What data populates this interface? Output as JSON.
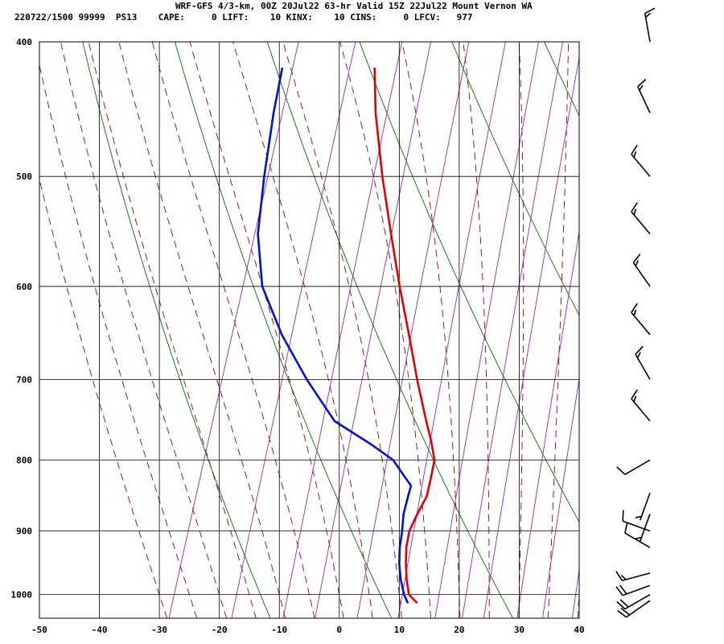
{
  "header": {
    "line1": "WRF-GFS 4/3-km, 00Z 20Jul22 63-hr Valid 15Z 22Jul22 Mount Vernon WA",
    "line2": "220722/1500 99999  PS13    CAPE:     0 LIFT:    10 KINX:    10 CINS:     0 LFCV:   977"
  },
  "chart_data": {
    "type": "line",
    "title": "WRF-GFS 4/3-km, 00Z 20Jul22 63-hr Valid 15Z 22Jul22 Mount Vernon WA",
    "xlabel": "",
    "ylabel": "",
    "xlim": [
      -50,
      40
    ],
    "ylim": [
      1040,
      400
    ],
    "x_ticks": [
      -50,
      -40,
      -30,
      -20,
      -10,
      0,
      10,
      20,
      30,
      40
    ],
    "y_ticks": [
      400,
      500,
      600,
      700,
      800,
      900,
      1000
    ],
    "grid": true,
    "colors": {
      "temperature": "#e00000",
      "dewpoint": "#0010d8",
      "isotherm": "#000000",
      "isobar": "#000000",
      "dry_adiabat": "#007000",
      "moist_adiabat": "#9a0000",
      "mixing_ratio": "#8a28c8",
      "wind_barb": "#000000"
    },
    "series": [
      {
        "key": "temperature",
        "p": [
          1013,
          1000,
          975,
          950,
          925,
          900,
          875,
          850,
          825,
          800,
          775,
          750,
          700,
          650,
          600,
          550,
          500,
          450,
          418
        ],
        "values": [
          13.3,
          11.6,
          10.4,
          9.4,
          8.6,
          8.2,
          8.6,
          9.2,
          8.9,
          8.5,
          6.9,
          5.0,
          1.2,
          -2.6,
          -6.8,
          -11.1,
          -15.7,
          -20.3,
          -22.9
        ]
      },
      {
        "key": "dewpoint",
        "p": [
          1013,
          1000,
          975,
          950,
          925,
          900,
          875,
          850,
          835,
          800,
          780,
          750,
          700,
          650,
          600,
          550,
          500,
          450,
          418
        ],
        "values": [
          11.8,
          10.8,
          9.4,
          8.3,
          7.5,
          7.0,
          6.3,
          6.1,
          6.0,
          1.6,
          -2.8,
          -10.3,
          -17.2,
          -23.8,
          -29.7,
          -33.3,
          -35.4,
          -37.3,
          -38.3
        ]
      }
    ],
    "wind_barbs": [
      {
        "p": 1010,
        "dir": 235,
        "speed": 20
      },
      {
        "p": 1000,
        "dir": 240,
        "speed": 20
      },
      {
        "p": 985,
        "dir": 250,
        "speed": 20
      },
      {
        "p": 965,
        "dir": 255,
        "speed": 15
      },
      {
        "p": 925,
        "dir": 300,
        "speed": 10
      },
      {
        "p": 900,
        "dir": 290,
        "speed": 10
      },
      {
        "p": 875,
        "dir": 200,
        "speed": 5
      },
      {
        "p": 845,
        "dir": 200,
        "speed": 5
      },
      {
        "p": 800,
        "dir": 240,
        "speed": 10
      },
      {
        "p": 750,
        "dir": 320,
        "speed": 15
      },
      {
        "p": 700,
        "dir": 330,
        "speed": 15
      },
      {
        "p": 650,
        "dir": 320,
        "speed": 15
      },
      {
        "p": 600,
        "dir": 325,
        "speed": 15
      },
      {
        "p": 550,
        "dir": 320,
        "speed": 15
      },
      {
        "p": 500,
        "dir": 320,
        "speed": 15
      },
      {
        "p": 450,
        "dir": 335,
        "speed": 15
      },
      {
        "p": 400,
        "dir": 350,
        "speed": 15
      }
    ]
  }
}
